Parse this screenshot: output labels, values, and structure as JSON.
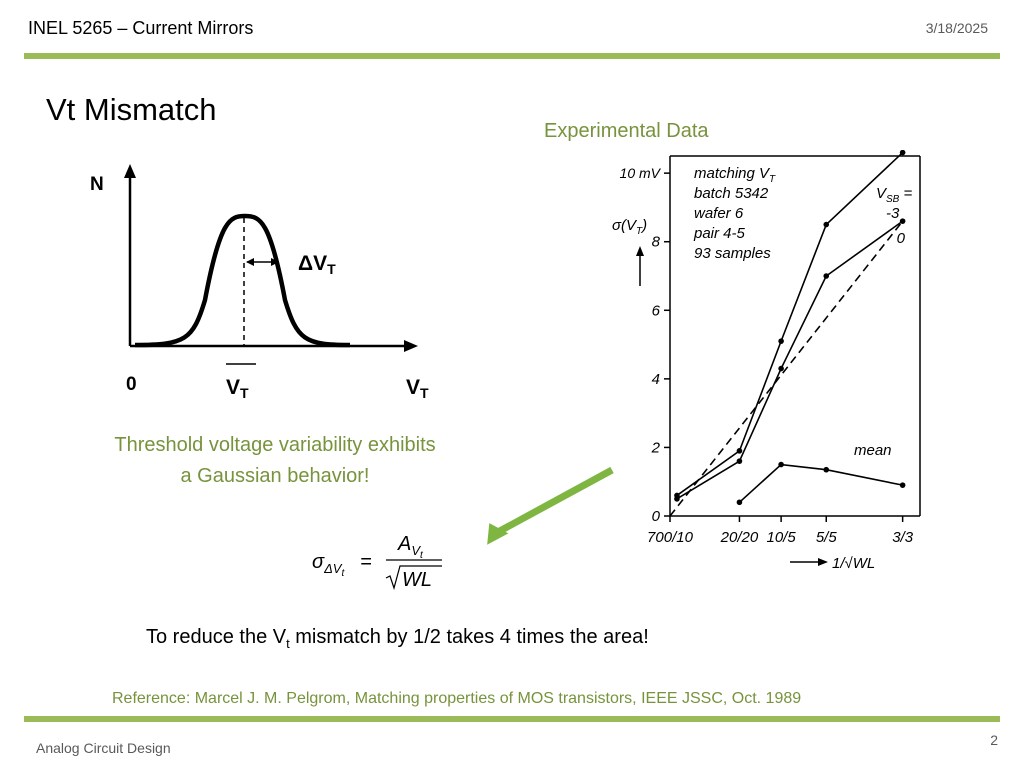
{
  "header": {
    "course": "INEL 5265 – Current Mirrors",
    "date": "3/18/2025"
  },
  "slide": {
    "title": "Vt Mismatch",
    "experimental_label": "Experimental Data",
    "caption_line1": "Threshold voltage variability exhibits",
    "caption_line2": "a Gaussian behavior!",
    "reduce_pre": "To reduce the V",
    "reduce_sub": "t",
    "reduce_post": " mismatch by 1/2 takes 4 times the area!",
    "reference": "Reference: Marcel J. M. Pelgrom, Matching properties of MOS transistors, IEEE JSSC, Oct. 1989"
  },
  "gaussian": {
    "y_label": "N",
    "origin_label": "0",
    "mean_label": "V",
    "mean_sub": "T",
    "x_label": "V",
    "x_sub": "T",
    "delta_label": "ΔV",
    "delta_sub": "T"
  },
  "formula": {
    "lhs": "σ",
    "lhs_sub": "ΔV",
    "lhs_subsub": "t",
    "equals": "=",
    "num": "A",
    "num_sub": "V",
    "num_subsub": "t",
    "den": "WL"
  },
  "chart_data": {
    "type": "line",
    "annotation_lines": [
      "matching V",
      "batch 5342",
      "wafer 6",
      "pair 4-5",
      "93 samples"
    ],
    "annotation_vt_sub": "T",
    "ylabel": "σ(V",
    "ylabel_sub": "T",
    "ylabel_close": ")",
    "y_unit_tick": "10 mV",
    "ylim": [
      0,
      10.5
    ],
    "y_ticks": [
      0,
      2,
      4,
      6,
      8
    ],
    "x_ticks": [
      {
        "value": 0,
        "label": "700/10"
      },
      {
        "value": 0.2,
        "label": "20/20"
      },
      {
        "value": 0.32,
        "label": "10/5"
      },
      {
        "value": 0.45,
        "label": "5/5"
      },
      {
        "value": 0.67,
        "label": "3/3"
      }
    ],
    "xlabel": "1/√WL",
    "vsb_label": "V",
    "vsb_sub": "SB",
    "vsb_eq": " =",
    "series": [
      {
        "name": "-3",
        "style": "solid",
        "points": [
          [
            0.02,
            0.6
          ],
          [
            0.2,
            1.9
          ],
          [
            0.32,
            5.1
          ],
          [
            0.45,
            8.5
          ],
          [
            0.67,
            11.2
          ]
        ]
      },
      {
        "name": "0",
        "style": "solid",
        "points": [
          [
            0.02,
            0.5
          ],
          [
            0.2,
            1.6
          ],
          [
            0.32,
            4.3
          ],
          [
            0.45,
            7.0
          ],
          [
            0.67,
            8.6
          ]
        ]
      },
      {
        "name": "",
        "style": "dashed",
        "points": [
          [
            0.0,
            0.0
          ],
          [
            0.67,
            8.6
          ]
        ]
      },
      {
        "name": "mean",
        "style": "solid",
        "points": [
          [
            0.2,
            0.4
          ],
          [
            0.32,
            1.5
          ],
          [
            0.45,
            1.35
          ],
          [
            0.67,
            0.9
          ]
        ]
      }
    ]
  },
  "footer": {
    "left": "Analog Circuit Design",
    "page": "2"
  }
}
